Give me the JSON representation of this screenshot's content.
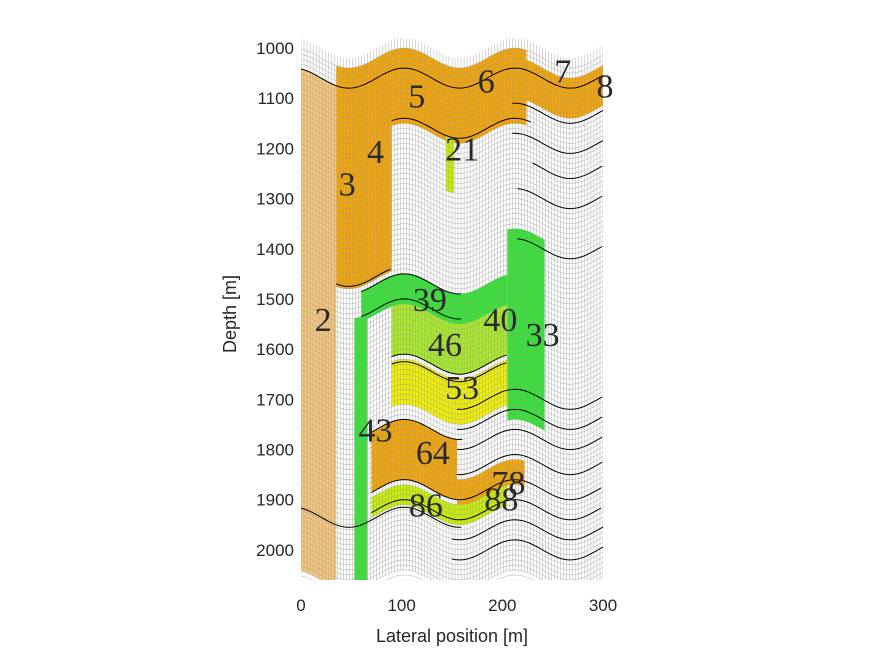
{
  "chart_data": {
    "type": "heatmap",
    "title": "",
    "xlabel": "Lateral position [m]",
    "ylabel": "Depth [m]",
    "xlim": [
      0,
      300
    ],
    "ylim": [
      2060,
      1000
    ],
    "y_reversed": true,
    "grid": false,
    "x_ticks": [
      0,
      100,
      200,
      300
    ],
    "y_ticks": [
      1000,
      1100,
      1200,
      1300,
      1400,
      1500,
      1600,
      1700,
      1800,
      1900,
      2000
    ],
    "colors": {
      "light_orange": "#f7c77a",
      "orange": "#f5a400",
      "yellow_green": "#c8f000",
      "yellow": "#f2f200",
      "green": "#2ee62e",
      "light_green": "#a8ec22",
      "grid_line": "#9a9a9a",
      "fault_line": "#000000"
    },
    "cell_labels": [
      {
        "id": "2",
        "x": 22,
        "y": 1540
      },
      {
        "id": "3",
        "x": 46,
        "y": 1270
      },
      {
        "id": "4",
        "x": 74,
        "y": 1205
      },
      {
        "id": "5",
        "x": 115,
        "y": 1095
      },
      {
        "id": "6",
        "x": 184,
        "y": 1065
      },
      {
        "id": "7",
        "x": 260,
        "y": 1045
      },
      {
        "id": "8",
        "x": 302,
        "y": 1075
      },
      {
        "id": "21",
        "x": 160,
        "y": 1200
      },
      {
        "id": "39",
        "x": 128,
        "y": 1500
      },
      {
        "id": "40",
        "x": 198,
        "y": 1540
      },
      {
        "id": "33",
        "x": 240,
        "y": 1570
      },
      {
        "id": "46",
        "x": 143,
        "y": 1590
      },
      {
        "id": "53",
        "x": 160,
        "y": 1675
      },
      {
        "id": "43",
        "x": 74,
        "y": 1760
      },
      {
        "id": "64",
        "x": 131,
        "y": 1805
      },
      {
        "id": "78",
        "x": 206,
        "y": 1865
      },
      {
        "id": "86",
        "x": 124,
        "y": 1910
      },
      {
        "id": "88",
        "x": 199,
        "y": 1898
      }
    ],
    "regions": [
      {
        "id": "2",
        "color": "light_orange",
        "x": [
          0,
          35
        ],
        "y": [
          1060,
          2060
        ]
      },
      {
        "id": "3-4",
        "color": "orange",
        "x": [
          35,
          90
        ],
        "y": [
          1020,
          1460
        ]
      },
      {
        "id": "5-6",
        "color": "orange",
        "x": [
          90,
          224
        ],
        "y": [
          1020,
          1170
        ]
      },
      {
        "id": "7-8",
        "color": "orange",
        "x": [
          224,
          300
        ],
        "y": [
          1040,
          1120
        ]
      },
      {
        "id": "21",
        "color": "yellow_green",
        "x": [
          144,
          152
        ],
        "y": [
          1160,
          1270
        ]
      },
      {
        "id": "39-40",
        "color": "green",
        "x": [
          60,
          205
        ],
        "y": [
          1470,
          1530
        ]
      },
      {
        "id": "33",
        "color": "green",
        "x": [
          205,
          242
        ],
        "y": [
          1380,
          1760
        ]
      },
      {
        "id": "46",
        "color": "light_green",
        "x": [
          90,
          205
        ],
        "y": [
          1530,
          1630
        ]
      },
      {
        "id": "53",
        "color": "yellow",
        "x": [
          90,
          205
        ],
        "y": [
          1640,
          1730
        ]
      },
      {
        "id": "43",
        "color": "green",
        "x": [
          53,
          66
        ],
        "y": [
          1520,
          2060
        ]
      },
      {
        "id": "64",
        "color": "orange",
        "x": [
          70,
          155
        ],
        "y": [
          1760,
          1880
        ]
      },
      {
        "id": "78",
        "color": "orange",
        "x": [
          155,
          222
        ],
        "y": [
          1840,
          1890
        ]
      },
      {
        "id": "86",
        "color": "yellow_green",
        "x": [
          70,
          205
        ],
        "y": [
          1890,
          1930
        ]
      }
    ]
  }
}
